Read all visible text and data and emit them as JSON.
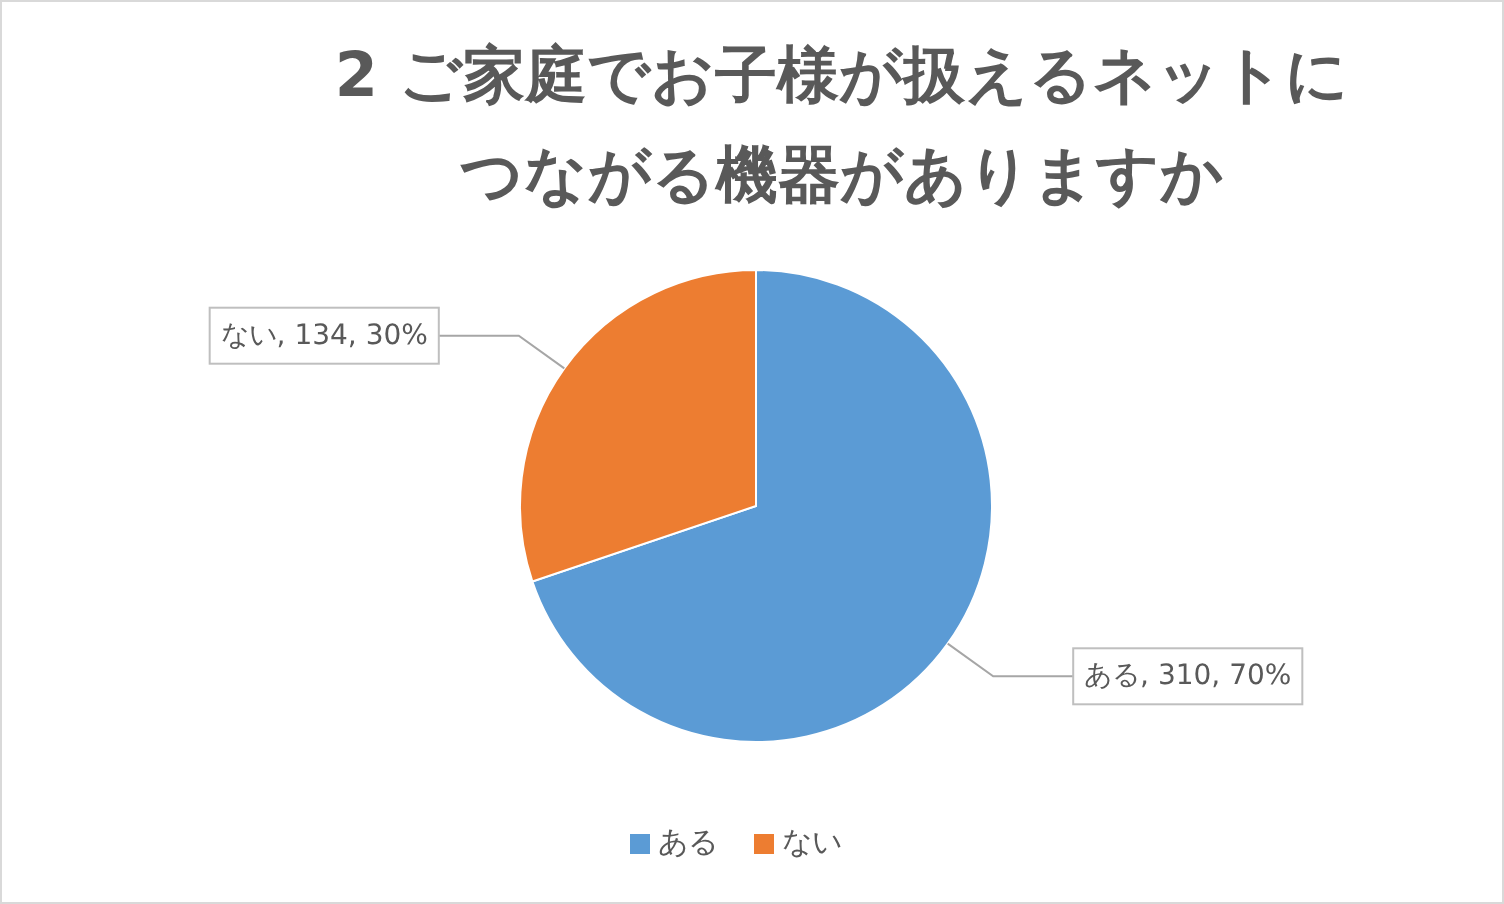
{
  "chart_data": {
    "type": "pie",
    "title": "2 ご家庭でお子様が扱えるネットにつながる機器がありますか",
    "categories": [
      "ある",
      "ない"
    ],
    "values": [
      310,
      134
    ],
    "colors": [
      "#5b9bd5",
      "#ed7d31"
    ],
    "value_labels": [
      "ある, 310, 70%",
      "ない, 134, 30%"
    ],
    "legend": "bottom"
  }
}
